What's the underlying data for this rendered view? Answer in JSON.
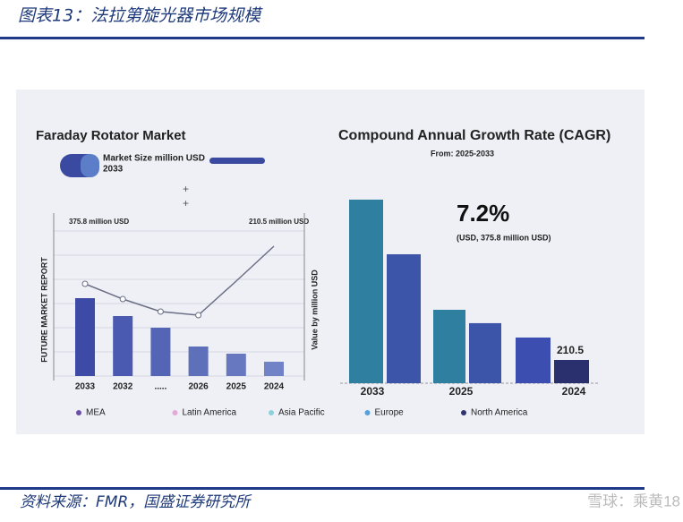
{
  "header": {
    "title": "图表13：法拉第旋光器市场规模"
  },
  "footer": {
    "source": "资料来源：FMR，国盛证券研究所",
    "watermark": "雪球：乘黄18"
  },
  "chart_data": [
    {
      "type": "bar",
      "title": "Faraday Rotator Market",
      "subtitle": "Market Size million USD",
      "subtitle_year": "2033",
      "ylabel": "FUTURE MARKET REPORT",
      "y2label": "Value by million USD",
      "annotations": [
        "375.8 million USD",
        "210.5 million USD"
      ],
      "categories": [
        "2033",
        "2032",
        ".....",
        "2026",
        "2025",
        "2024"
      ],
      "series": [
        {
          "name": "bars",
          "colors": [
            "#3d4ba6",
            "#4a5ab0",
            "#5565b5",
            "#5f70bb",
            "#6878c0",
            "#7282c6"
          ],
          "values": [
            87,
            67,
            54,
            33,
            25,
            16
          ]
        },
        {
          "name": "line",
          "color": "#6a6f86",
          "values": [
            103,
            86,
            72,
            68,
            106,
            145
          ]
        }
      ],
      "legend": [
        {
          "name": "MEA",
          "color": "#6b4fa8"
        },
        {
          "name": "Latin America",
          "color": "#e6a8d8"
        },
        {
          "name": "Asia Pacific",
          "color": "#8ed0dc"
        },
        {
          "name": "Europe",
          "color": "#5aa0d8"
        },
        {
          "name": "North America",
          "color": "#2f3470"
        }
      ]
    },
    {
      "type": "bar",
      "title": "Compound Annual Growth Rate (CAGR)",
      "subtitle": "From: 2025-2033",
      "highlight": "7.2%",
      "highlight_note": "(USD, 375.8 million USD)",
      "categories": [
        "2033",
        "2025",
        "2024"
      ],
      "series": [
        {
          "name": "a",
          "colors": [
            "#2f7fa0",
            "#2f7fa0",
            "#3c4fb0"
          ],
          "values": [
            1660,
            664,
            413
          ]
        },
        {
          "name": "b",
          "colors": [
            "#3c55a8",
            "#3c55a8",
            "#2a2f6e"
          ],
          "values": [
            1166,
            543,
            210.5
          ]
        }
      ]
    }
  ]
}
